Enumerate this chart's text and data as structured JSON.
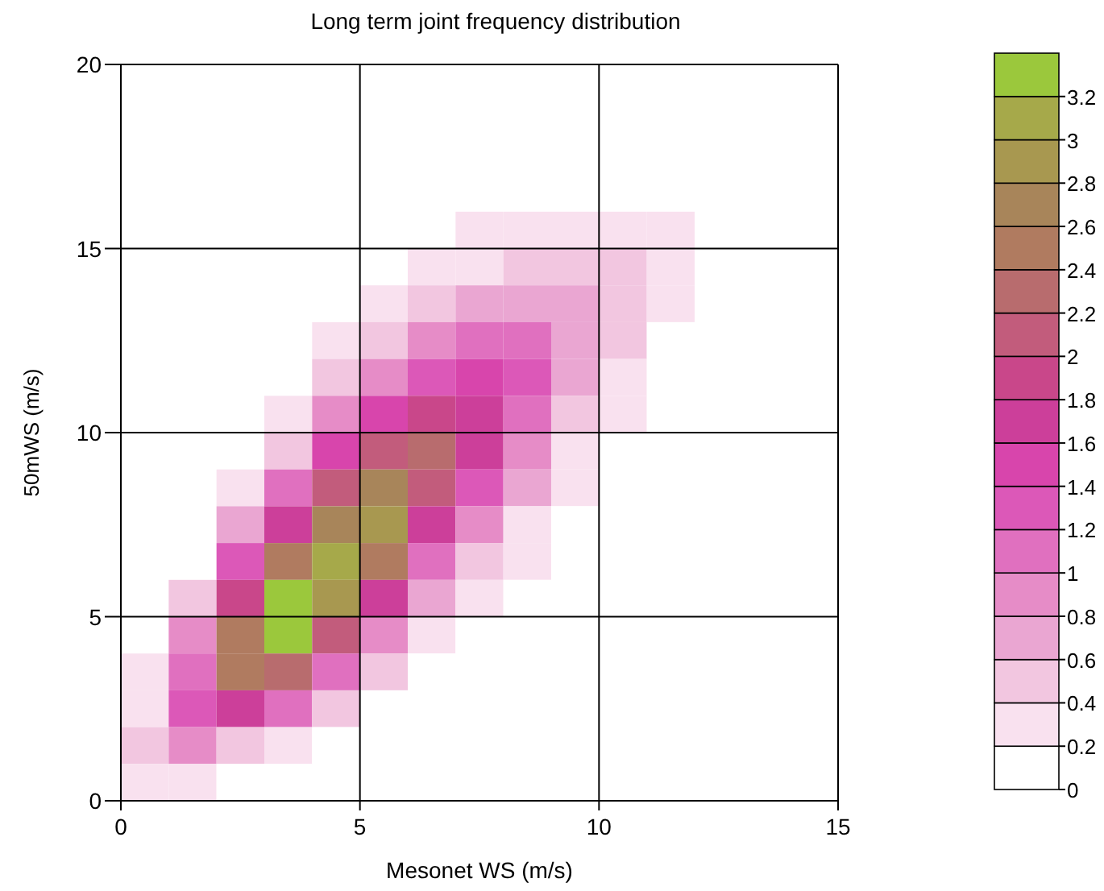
{
  "chart_data": {
    "type": "heatmap",
    "title": "Long term joint frequency distribution",
    "xlabel": "Mesonet WS (m/s)",
    "ylabel": "50mWS (m/s)",
    "x": [
      0.5,
      1.5,
      2.5,
      3.5,
      4.5,
      5.5,
      6.5,
      7.5,
      8.5,
      9.5,
      10.5,
      11.5,
      12.5,
      13.5,
      14.5
    ],
    "y": [
      19.5,
      18.5,
      17.5,
      16.5,
      15.5,
      14.5,
      13.5,
      12.5,
      11.5,
      10.5,
      9.5,
      8.5,
      7.5,
      6.5,
      5.5,
      4.5,
      3.5,
      2.5,
      1.5,
      0.5
    ],
    "xlim": [
      0,
      15
    ],
    "xticks": [
      0,
      5,
      10,
      15
    ],
    "ylim": [
      0,
      20
    ],
    "yticks": [
      0,
      5,
      10,
      15,
      20
    ],
    "grid": true,
    "clim": [
      0,
      3.4
    ],
    "cticks": [
      0,
      0.2,
      0.4,
      0.6,
      0.8,
      1,
      1.2,
      1.4,
      1.6,
      1.8,
      2,
      2.2,
      2.4,
      2.6,
      2.8,
      3,
      3.2
    ],
    "cells": [
      [
        0,
        0,
        0,
        0,
        0,
        0,
        0,
        0,
        0,
        0,
        0,
        0,
        0,
        0,
        0
      ],
      [
        0,
        0,
        0,
        0,
        0,
        0,
        0,
        0,
        0,
        0,
        0,
        0,
        0,
        0,
        0
      ],
      [
        0,
        0,
        0,
        0,
        0,
        0,
        0,
        0,
        0,
        0,
        0,
        0,
        0,
        0,
        0
      ],
      [
        0,
        0,
        0,
        0,
        0,
        0,
        0,
        0.1,
        0.1,
        0.1,
        0.1,
        0.1,
        0,
        0,
        0
      ],
      [
        0,
        0,
        0,
        0,
        0,
        0,
        0.1,
        0.2,
        0.2,
        0.3,
        0.2,
        0.2,
        0,
        0,
        0
      ],
      [
        0,
        0,
        0,
        0,
        0,
        0.1,
        0.2,
        0.3,
        0.4,
        0.4,
        0.4,
        0.2,
        0,
        0,
        0
      ],
      [
        0,
        0,
        0,
        0,
        0.1,
        0.2,
        0.4,
        0.7,
        0.7,
        0.6,
        0.4,
        0.2,
        0,
        0,
        0
      ],
      [
        0,
        0,
        0,
        0,
        0.2,
        0.4,
        0.8,
        1.1,
        1.0,
        0.7,
        0.4,
        0.1,
        0,
        0,
        0
      ],
      [
        0,
        0,
        0,
        0.1,
        0.4,
        0.8,
        1.3,
        1.5,
        1.2,
        0.6,
        0.3,
        0.1,
        0,
        0,
        0
      ],
      [
        0,
        0,
        0,
        0.2,
        0.8,
        1.5,
        1.8,
        1.7,
        1.1,
        0.5,
        0.2,
        0,
        0,
        0,
        0
      ],
      [
        0,
        0,
        0.1,
        0.5,
        1.4,
        2.1,
        2.2,
        1.6,
        0.9,
        0.3,
        0.1,
        0,
        0,
        0,
        0
      ],
      [
        0,
        0,
        0.3,
        1.0,
        2.1,
        2.6,
        2.1,
        1.3,
        0.6,
        0.2,
        0,
        0,
        0,
        0,
        0
      ],
      [
        0,
        0,
        0.6,
        1.7,
        2.7,
        2.8,
        1.7,
        0.9,
        0.3,
        0.1,
        0,
        0,
        0,
        0,
        0
      ],
      [
        0,
        0.1,
        1.2,
        2.5,
        3.1,
        2.5,
        1.1,
        0.5,
        0.2,
        0,
        0,
        0,
        0,
        0,
        0
      ],
      [
        0,
        0.4,
        1.9,
        3.2,
        2.9,
        1.7,
        0.6,
        0.2,
        0.1,
        0,
        0,
        0,
        0,
        0,
        0
      ],
      [
        0.1,
        0.8,
        2.5,
        3.3,
        2.0,
        0.9,
        0.3,
        0.1,
        0,
        0,
        0,
        0,
        0,
        0,
        0
      ],
      [
        0.2,
        1.1,
        2.5,
        2.2,
        1.0,
        0.4,
        0.1,
        0,
        0,
        0,
        0,
        0,
        0,
        0,
        0
      ],
      [
        0.3,
        1.3,
        1.6,
        1.0,
        0.4,
        0.1,
        0,
        0,
        0,
        0,
        0,
        0,
        0,
        0,
        0
      ],
      [
        0.4,
        0.9,
        0.5,
        0.3,
        0.1,
        0,
        0,
        0,
        0,
        0,
        0,
        0,
        0,
        0,
        0
      ],
      [
        0.2,
        0.3,
        0.1,
        0.1,
        0,
        0,
        0,
        0,
        0,
        0,
        0,
        0,
        0,
        0,
        0
      ]
    ]
  }
}
